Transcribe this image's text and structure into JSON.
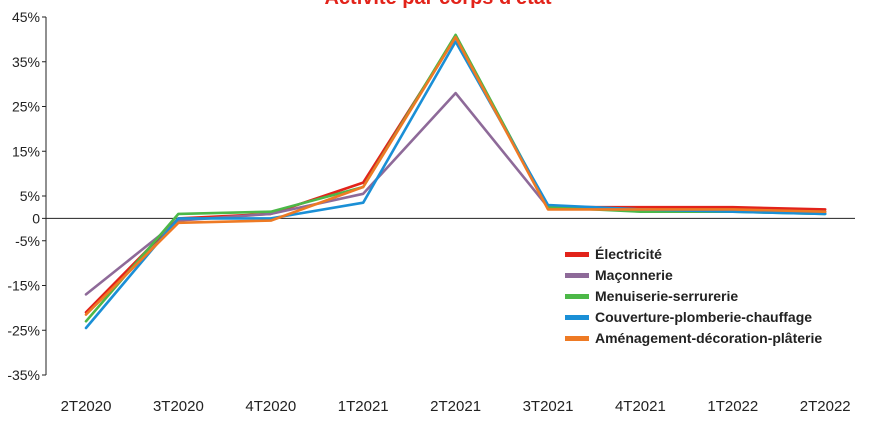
{
  "chart_data": {
    "type": "line",
    "title": "Activité par corps d'état",
    "xlabel": "",
    "ylabel": "",
    "categories": [
      "2T2020",
      "3T2020",
      "4T2020",
      "1T2021",
      "2T2021",
      "3T2021",
      "4T2021",
      "1T2022",
      "2T2022"
    ],
    "y_ticks": [
      {
        "value": 45,
        "label": "45%"
      },
      {
        "value": 35,
        "label": "35%"
      },
      {
        "value": 25,
        "label": "25%"
      },
      {
        "value": 15,
        "label": "15%"
      },
      {
        "value": 5,
        "label": "5%"
      },
      {
        "value": 0,
        "label": "0"
      },
      {
        "value": -5,
        "label": "-5%"
      },
      {
        "value": -15,
        "label": "-15%"
      },
      {
        "value": -25,
        "label": "-25%"
      },
      {
        "value": -35,
        "label": "-35%"
      }
    ],
    "ylim": [
      -35,
      45
    ],
    "grid": false,
    "legend_position": "right",
    "series": [
      {
        "name": "Électricité",
        "color": "#e2231a",
        "values": [
          -21,
          0,
          1,
          8,
          40.5,
          2.5,
          2.5,
          2.5,
          2
        ]
      },
      {
        "name": "Maçonnerie",
        "color": "#8e6a99",
        "values": [
          -17,
          -0.5,
          1,
          5.5,
          28,
          2.5,
          2,
          1.5,
          1.5
        ]
      },
      {
        "name": "Menuiserie-serrurerie",
        "color": "#4cb848",
        "values": [
          -23,
          1,
          1.5,
          7,
          41,
          2.5,
          1.5,
          1.5,
          1
        ]
      },
      {
        "name": "Couverture-plomberie-chauffage",
        "color": "#1a8fd6",
        "values": [
          -24.5,
          0,
          0,
          3.5,
          39.5,
          3,
          2,
          1.5,
          1
        ]
      },
      {
        "name": "Aménagement-décoration-plâterie",
        "color": "#ee7a24",
        "values": [
          -21.5,
          -1,
          -0.5,
          7,
          40.5,
          2,
          2,
          2,
          1.5
        ]
      }
    ]
  }
}
